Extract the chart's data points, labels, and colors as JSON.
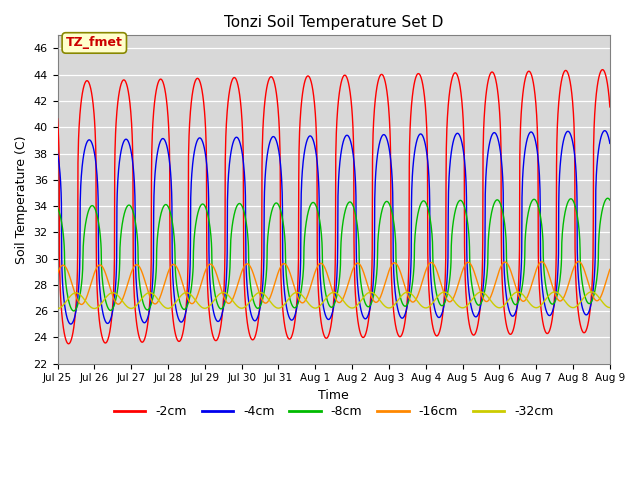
{
  "title": "Tonzi Soil Temperature Set D",
  "xlabel": "Time",
  "ylabel": "Soil Temperature (C)",
  "ylim": [
    22,
    47
  ],
  "yticks": [
    22,
    24,
    26,
    28,
    30,
    32,
    34,
    36,
    38,
    40,
    42,
    44,
    46
  ],
  "bg_color": "#d8d8d8",
  "legend_label": "TZ_fmet",
  "legend_box_facecolor": "#ffffcc",
  "legend_box_edgecolor": "#888800",
  "legend_text_color": "#cc0000",
  "series": {
    "-2cm": {
      "color": "#ff0000",
      "amplitude": 10.0,
      "mean": 33.5,
      "phase": 0.0,
      "sharpness": 3.5,
      "trend": 0.06
    },
    "-4cm": {
      "color": "#0000ee",
      "amplitude": 7.0,
      "mean": 32.0,
      "phase": 0.06,
      "sharpness": 3.0,
      "trend": 0.05
    },
    "-8cm": {
      "color": "#00bb00",
      "amplitude": 4.0,
      "mean": 30.0,
      "phase": 0.14,
      "sharpness": 2.0,
      "trend": 0.04
    },
    "-16cm": {
      "color": "#ff8800",
      "amplitude": 1.5,
      "mean": 28.0,
      "phase": 0.35,
      "sharpness": 1.0,
      "trend": 0.02
    },
    "-32cm": {
      "color": "#cccc00",
      "amplitude": 0.6,
      "mean": 26.8,
      "phase": 0.7,
      "sharpness": 1.0,
      "trend": 0.005
    }
  },
  "n_points": 2000,
  "days": 15,
  "x_tick_labels": [
    "Jul 25",
    "Jul 26",
    "Jul 27",
    "Jul 28",
    "Jul 29",
    "Jul 30",
    "Jul 31",
    "Aug 1",
    "Aug 2",
    "Aug 3",
    "Aug 4",
    "Aug 5",
    "Aug 6",
    "Aug 7",
    "Aug 8",
    "Aug 9"
  ],
  "linewidth": 1.0
}
